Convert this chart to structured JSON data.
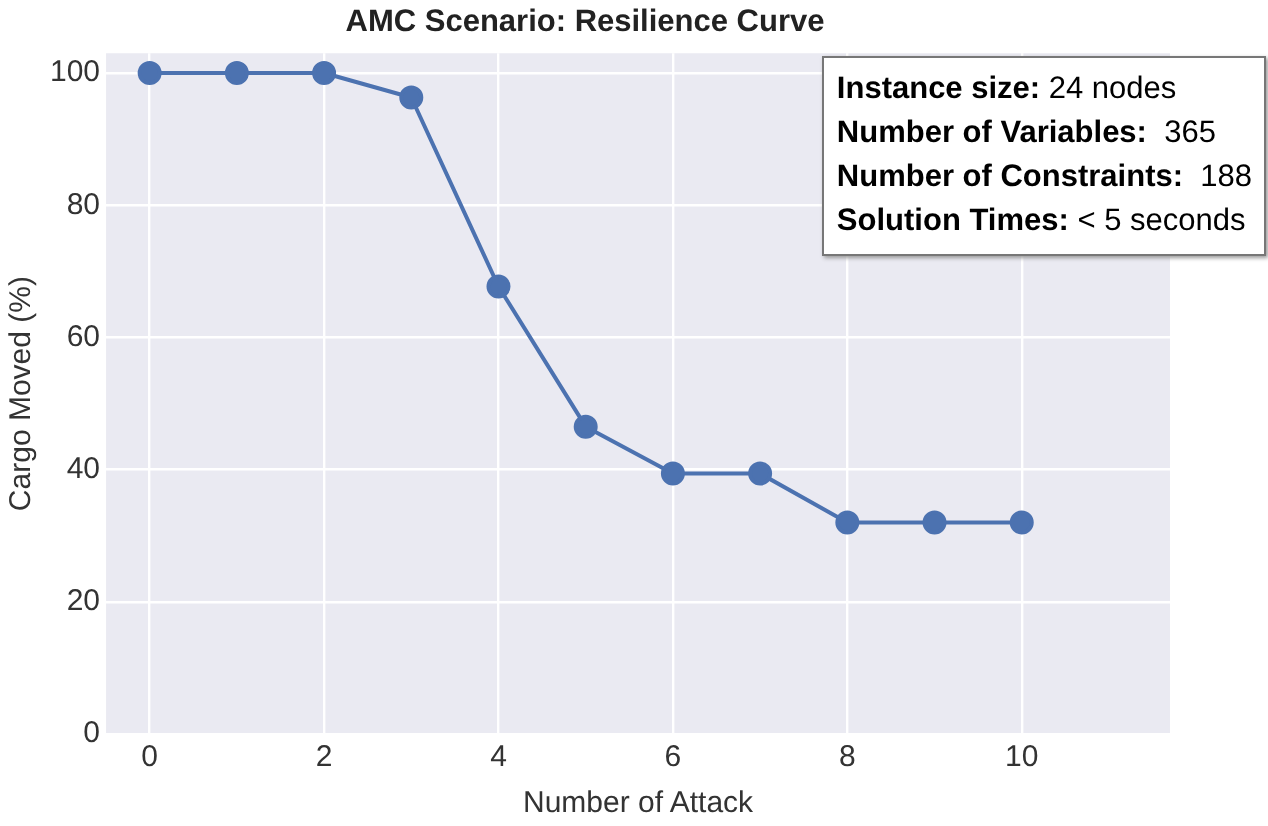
{
  "chart_data": {
    "type": "line",
    "title": "AMC Scenario: Resilience Curve",
    "xlabel": "Number of Attack",
    "ylabel": "Cargo Moved (%)",
    "x": [
      0,
      1,
      2,
      3,
      4,
      5,
      6,
      7,
      8,
      9,
      10
    ],
    "series": [
      {
        "color": "#4c72b0",
        "values": [
          100,
          100,
          100,
          96.3,
          67.7,
          46.5,
          39.4,
          39.4,
          32,
          32,
          32
        ]
      }
    ],
    "xlim": [
      -0.5,
      11.7
    ],
    "ylim": [
      0,
      103
    ],
    "xticks": [
      0,
      2,
      4,
      6,
      8,
      10
    ],
    "yticks": [
      0,
      20,
      40,
      60,
      80,
      100
    ],
    "grid": true,
    "legend": false,
    "marker": "circle",
    "line_style": "solid",
    "annotations": [
      "Instance size: 24 nodes",
      "Number of Variables:  365",
      "Number of Constraints:  188",
      "Solution Times: < 5 seconds"
    ]
  }
}
